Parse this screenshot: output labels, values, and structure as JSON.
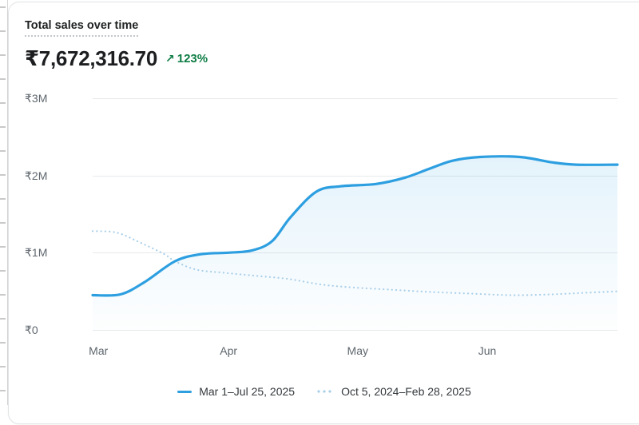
{
  "card": {
    "title": "Total sales over time",
    "value": "₹7,672,316.70",
    "delta_arrow": "↗",
    "delta": "123%",
    "delta_color": "#0e7d45"
  },
  "chart_data": {
    "type": "line",
    "title": "Total sales over time",
    "total_label": "₹7,672,316.70",
    "change_pct": 123,
    "y_unit": "M (₹ millions)",
    "ylim": [
      0,
      3
    ],
    "grid": true,
    "legend_position": "bottom",
    "y_ticks": [
      {
        "label": "₹0",
        "value": 0
      },
      {
        "label": "₹1M",
        "value": 1
      },
      {
        "label": "₹2M",
        "value": 2
      },
      {
        "label": "₹3M",
        "value": 3
      }
    ],
    "x_ticks": [
      {
        "label": "Mar",
        "pos": 0.011
      },
      {
        "label": "Apr",
        "pos": 0.259
      },
      {
        "label": "May",
        "pos": 0.505
      },
      {
        "label": "Jun",
        "pos": 0.752
      }
    ],
    "series": [
      {
        "name": "Mar 1–Jul 25, 2025",
        "style": "solid",
        "color": "#2d9fe0",
        "fill": true,
        "points": [
          [
            0.0,
            0.45
          ],
          [
            0.053,
            0.46
          ],
          [
            0.099,
            0.62
          ],
          [
            0.157,
            0.89
          ],
          [
            0.205,
            0.98
          ],
          [
            0.259,
            1.0
          ],
          [
            0.304,
            1.03
          ],
          [
            0.342,
            1.15
          ],
          [
            0.377,
            1.46
          ],
          [
            0.426,
            1.79
          ],
          [
            0.472,
            1.86
          ],
          [
            0.54,
            1.89
          ],
          [
            0.594,
            1.97
          ],
          [
            0.639,
            2.08
          ],
          [
            0.685,
            2.19
          ],
          [
            0.738,
            2.24
          ],
          [
            0.814,
            2.24
          ],
          [
            0.875,
            2.17
          ],
          [
            0.921,
            2.14
          ],
          [
            1.0,
            2.14
          ]
        ]
      },
      {
        "name": "Oct 5, 2024–Feb 28, 2025",
        "style": "dotted",
        "color": "#a9cfe9",
        "fill": false,
        "points": [
          [
            0.0,
            1.28
          ],
          [
            0.046,
            1.26
          ],
          [
            0.091,
            1.13
          ],
          [
            0.137,
            0.98
          ],
          [
            0.157,
            0.89
          ],
          [
            0.198,
            0.78
          ],
          [
            0.251,
            0.74
          ],
          [
            0.312,
            0.7
          ],
          [
            0.373,
            0.66
          ],
          [
            0.434,
            0.59
          ],
          [
            0.495,
            0.55
          ],
          [
            0.571,
            0.52
          ],
          [
            0.647,
            0.49
          ],
          [
            0.723,
            0.47
          ],
          [
            0.799,
            0.45
          ],
          [
            0.875,
            0.46
          ],
          [
            0.936,
            0.48
          ],
          [
            1.0,
            0.5
          ]
        ]
      }
    ]
  },
  "legend": {
    "items": [
      {
        "label": "Mar 1–Jul 25, 2025"
      },
      {
        "label": "Oct 5, 2024–Feb 28, 2025"
      }
    ]
  }
}
